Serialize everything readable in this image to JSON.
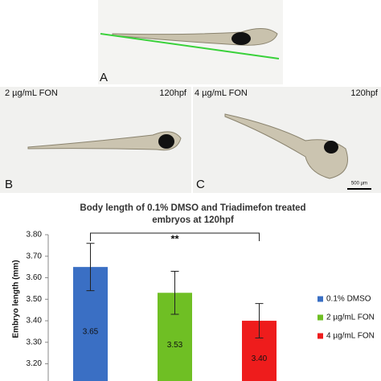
{
  "panels": {
    "a": {
      "label": "A"
    },
    "b": {
      "label": "B",
      "condition": "2 µg/mL FON",
      "stage": "120hpf"
    },
    "c": {
      "label": "C",
      "condition": "4 µg/mL FON",
      "stage": "120hpf",
      "scale_bar": "500 µm"
    }
  },
  "chart_data": {
    "type": "bar",
    "title": "Body length of 0.1% DMSO and Triadimefon treated embryos at 120hpf",
    "y_label": "Embryo length (mm)",
    "categories": [
      "0.1% DMSO",
      "2 µg/mL FON",
      "4 µg/mL FON"
    ],
    "values": [
      3.65,
      3.53,
      3.4
    ],
    "value_labels": [
      "3.65",
      "3.53",
      "3.40"
    ],
    "errors": [
      0.11,
      0.1,
      0.08
    ],
    "colors": [
      "#3a6fc4",
      "#6fbf24",
      "#ee1c1c"
    ],
    "ylim": [
      3.12,
      3.8
    ],
    "yticks": [
      {
        "value": 3.2,
        "label": "3.20"
      },
      {
        "value": 3.3,
        "label": "3.30"
      },
      {
        "value": 3.4,
        "label": "3.40"
      },
      {
        "value": 3.5,
        "label": "3.50"
      },
      {
        "value": 3.6,
        "label": "3.60"
      },
      {
        "value": 3.7,
        "label": "3.70"
      },
      {
        "value": 3.8,
        "label": "3.80"
      }
    ],
    "annotation": "**",
    "legend": "right"
  }
}
